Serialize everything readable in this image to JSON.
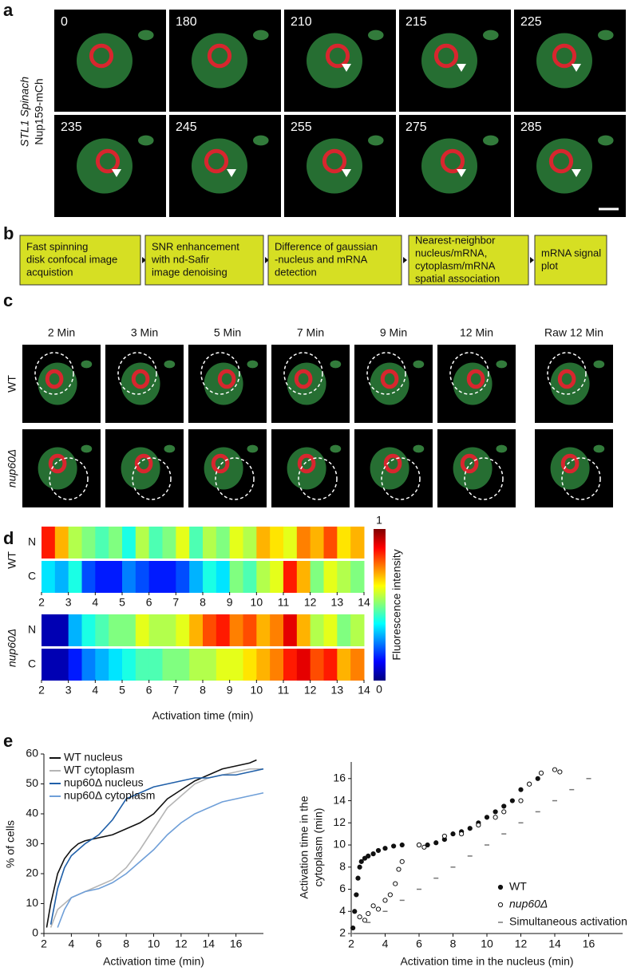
{
  "panel_a": {
    "label": "a",
    "y_label_1": "STL1 Spinach",
    "y_label_2": "Nup159-mCh",
    "frames": [
      "0",
      "180",
      "210",
      "215",
      "225",
      "235",
      "245",
      "255",
      "275",
      "285"
    ]
  },
  "panel_b": {
    "label": "b",
    "steps": [
      [
        "Fast spinning",
        "disk confocal image",
        "acquistion"
      ],
      [
        "SNR enhancement",
        "with nd-Safir",
        "image denoising"
      ],
      [
        "Difference of gaussian",
        "-nucleus and mRNA",
        "detection"
      ],
      [
        "Nearest-neighbor",
        "nucleus/mRNA,",
        "cytoplasm/mRNA",
        "spatial association"
      ],
      [
        "mRNA signal",
        "plot"
      ]
    ]
  },
  "panel_c": {
    "label": "c",
    "times": [
      "2 Min",
      "3 Min",
      "5 Min",
      "7 Min",
      "9 Min",
      "12 Min",
      "Raw 12 Min"
    ],
    "rows": [
      "WT",
      "nup60Δ"
    ]
  },
  "panel_d": {
    "label": "d"
  },
  "panel_e": {
    "label": "e"
  },
  "chart_data": [
    {
      "type": "heatmap",
      "xlabel": "Activation time (min)",
      "colorbar_label": "Fluorescence intensity",
      "colorbar_ticks": [
        0,
        1
      ],
      "xlim": [
        2,
        14
      ],
      "xticks": [
        2,
        3,
        4,
        5,
        6,
        7,
        8,
        9,
        10,
        11,
        12,
        13,
        14
      ],
      "bins": [
        2,
        2.5,
        3,
        3.5,
        4,
        4.5,
        5,
        5.5,
        6,
        6.5,
        7,
        7.5,
        8,
        8.5,
        9,
        9.5,
        10,
        10.5,
        11,
        11.5,
        12,
        12.5,
        13,
        13.5,
        14
      ],
      "groups": [
        {
          "name": "WT",
          "rows": [
            {
              "name": "N",
              "values": [
                0.85,
                0.7,
                0.55,
                0.5,
                0.45,
                0.5,
                0.4,
                0.55,
                0.45,
                0.5,
                0.6,
                0.45,
                0.55,
                0.5,
                0.6,
                0.55,
                0.7,
                0.65,
                0.6,
                0.75,
                0.7,
                0.8,
                0.65,
                0.7
              ]
            },
            {
              "name": "C",
              "values": [
                0.35,
                0.3,
                0.4,
                0.2,
                0.15,
                0.15,
                0.25,
                0.2,
                0.15,
                0.15,
                0.2,
                0.3,
                0.4,
                0.35,
                0.5,
                0.45,
                0.55,
                0.6,
                0.85,
                0.7,
                0.5,
                0.6,
                0.55,
                0.5
              ]
            }
          ]
        },
        {
          "name": "nup60Δ",
          "rows": [
            {
              "name": "N",
              "values": [
                0.05,
                0.05,
                0.3,
                0.4,
                0.45,
                0.5,
                0.5,
                0.6,
                0.55,
                0.55,
                0.6,
                0.7,
                0.8,
                0.85,
                0.75,
                0.8,
                0.7,
                0.75,
                0.9,
                0.7,
                0.55,
                0.6,
                0.5,
                0.55
              ]
            },
            {
              "name": "C",
              "values": [
                0.05,
                0.05,
                0.15,
                0.25,
                0.3,
                0.35,
                0.4,
                0.45,
                0.45,
                0.5,
                0.5,
                0.55,
                0.55,
                0.6,
                0.6,
                0.65,
                0.7,
                0.75,
                0.85,
                0.9,
                0.8,
                0.85,
                0.7,
                0.75
              ]
            }
          ]
        }
      ]
    },
    {
      "type": "line",
      "xlabel": "Activation time (min)",
      "ylabel": "% of cells",
      "xlim": [
        2,
        18
      ],
      "xticks": [
        2,
        4,
        6,
        8,
        10,
        12,
        14,
        16
      ],
      "ylim": [
        0,
        60
      ],
      "yticks": [
        0,
        10,
        20,
        30,
        40,
        50,
        60
      ],
      "series": [
        {
          "name": "WT nucleus",
          "color": "#111111",
          "x": [
            2.2,
            2.5,
            3,
            3.5,
            4,
            4.5,
            5,
            6,
            7,
            8,
            9,
            10,
            11,
            12,
            13,
            14,
            15,
            16,
            17,
            17.5
          ],
          "values": [
            2,
            10,
            20,
            25,
            28,
            30,
            31,
            32,
            33,
            35,
            37,
            40,
            45,
            48,
            51,
            53,
            55,
            56,
            57,
            58
          ]
        },
        {
          "name": "WT cytoplasm",
          "color": "#b5b5b5",
          "x": [
            2.5,
            3,
            4,
            5,
            6,
            7,
            8,
            9,
            10,
            11,
            12,
            13,
            14,
            15,
            16,
            17,
            18
          ],
          "values": [
            2,
            8,
            12,
            14,
            16,
            18,
            22,
            28,
            35,
            42,
            46,
            50,
            52,
            53,
            54,
            55,
            55
          ]
        },
        {
          "name": "nup60Δ nucleus",
          "color": "#1f5fa8",
          "x": [
            2.5,
            3,
            3.5,
            4,
            5,
            6,
            7,
            8,
            9,
            10,
            11,
            12,
            13,
            14,
            15,
            16,
            17,
            18
          ],
          "values": [
            3,
            15,
            22,
            26,
            30,
            33,
            38,
            45,
            47,
            49,
            50,
            51,
            52,
            52,
            53,
            53,
            54,
            55
          ]
        },
        {
          "name": "nup60Δ cytoplasm",
          "color": "#6f9fd8",
          "x": [
            3,
            3.5,
            4,
            5,
            6,
            7,
            8,
            9,
            10,
            11,
            12,
            13,
            14,
            15,
            16,
            17,
            18
          ],
          "values": [
            2,
            8,
            12,
            14,
            15,
            17,
            20,
            24,
            28,
            33,
            37,
            40,
            42,
            44,
            45,
            46,
            47
          ]
        }
      ]
    },
    {
      "type": "scatter",
      "xlabel": "Activation time in the nucleus (min)",
      "ylabel": [
        "Activation time in the",
        "cytoplasm (min)"
      ],
      "xlim": [
        2,
        18
      ],
      "xticks": [
        2,
        4,
        6,
        8,
        10,
        12,
        14,
        16
      ],
      "ylim": [
        2,
        17.5
      ],
      "yticks": [
        2,
        4,
        6,
        8,
        10,
        12,
        14,
        16
      ],
      "series": [
        {
          "name": "WT",
          "marker": "filled",
          "color": "#111111",
          "x": [
            2.1,
            2.2,
            2.3,
            2.4,
            2.5,
            2.6,
            2.8,
            3,
            3.3,
            3.6,
            4,
            4.5,
            5,
            6,
            6.5,
            7,
            7.5,
            8,
            8.5,
            9,
            9.5,
            10,
            10.5,
            11,
            11.5,
            12,
            12.5,
            13
          ],
          "values": [
            2.5,
            4,
            5.5,
            7,
            8,
            8.5,
            8.8,
            9,
            9.2,
            9.5,
            9.7,
            9.9,
            10,
            10,
            10,
            10.2,
            10.5,
            11,
            11.2,
            11.5,
            12,
            12.5,
            13,
            13.5,
            14,
            15,
            15.5,
            16
          ]
        },
        {
          "name": "nup60Δ",
          "marker": "open",
          "color": "#111111",
          "x": [
            2.5,
            2.8,
            3,
            3.3,
            3.6,
            4,
            4.3,
            4.6,
            4.8,
            5,
            6,
            6.3,
            7.5,
            8.5,
            9.5,
            10.5,
            11,
            12,
            12.5,
            13.2,
            14,
            14.3
          ],
          "values": [
            3.5,
            3.2,
            3.8,
            4.5,
            4.2,
            5,
            5.5,
            6.5,
            7.8,
            8.5,
            10,
            9.8,
            10.8,
            11,
            11.8,
            12.5,
            13,
            14,
            15.5,
            16.5,
            16.8,
            16.6
          ]
        },
        {
          "name": "Simultaneous activation",
          "marker": "dash",
          "color": "#777777",
          "x": [
            2,
            3,
            4,
            5,
            6,
            7,
            8,
            9,
            10,
            11,
            12,
            13,
            14,
            15,
            16
          ],
          "values": [
            2,
            3,
            4,
            5,
            6,
            7,
            8,
            9,
            10,
            11,
            12,
            13,
            14,
            15,
            16
          ]
        }
      ]
    }
  ]
}
